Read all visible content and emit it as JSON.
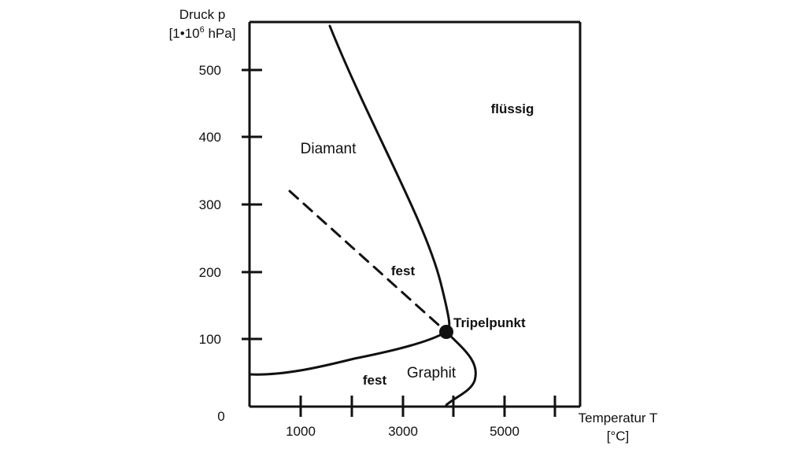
{
  "y_axis": {
    "label_line1": "Druck p",
    "label_line2_prefix": "[1•10",
    "label_line2_sup": "6",
    "label_line2_suffix": " hPa]",
    "ticks": [
      "500",
      "400",
      "300",
      "200",
      "100"
    ],
    "origin": "0"
  },
  "x_axis": {
    "label_line1": "Temperatur T",
    "label_line2": "[°C]",
    "ticks": [
      "1000",
      "3000",
      "5000"
    ]
  },
  "regions": {
    "diamant": "Diamant",
    "fluessig": "flüssig",
    "fest_upper": "fest",
    "graphit": "Graphit",
    "fest_lower": "fest"
  },
  "triple_point": {
    "label": "Tripelpunkt"
  }
}
